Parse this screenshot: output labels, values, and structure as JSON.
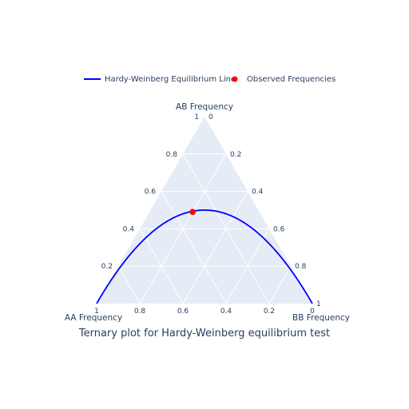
{
  "chart_data": {
    "type": "ternary",
    "title": "Ternary plot for Hardy-Weinberg equilibrium test",
    "axes": {
      "a": {
        "title": "AB Frequency",
        "ticks": [
          "0.2",
          "0.4",
          "0.6",
          "0.8",
          "1"
        ]
      },
      "b": {
        "title": "AA Frequency",
        "ticks": [
          "0",
          "0.2",
          "0.4",
          "0.6",
          "0.8",
          "1"
        ]
      },
      "c": {
        "title": "BB Frequency",
        "ticks": [
          "0",
          "0.2",
          "0.4",
          "0.6",
          "0.8",
          "1"
        ]
      }
    },
    "series": [
      {
        "name": "Hardy-Weinberg Equilibrium Line",
        "kind": "line",
        "color": "#0000ff",
        "relation": "AB = 2*sqrt(AA*BB), AA + AB + BB = 1"
      },
      {
        "name": "Observed Frequencies",
        "kind": "marker",
        "color": "#ff0000",
        "points": [
          {
            "AA": 0.31,
            "AB": 0.49,
            "BB": 0.2
          }
        ]
      }
    ],
    "legend": {
      "position": "top",
      "orientation": "horizontal"
    },
    "grid": true,
    "background": "#e5ecf6"
  }
}
